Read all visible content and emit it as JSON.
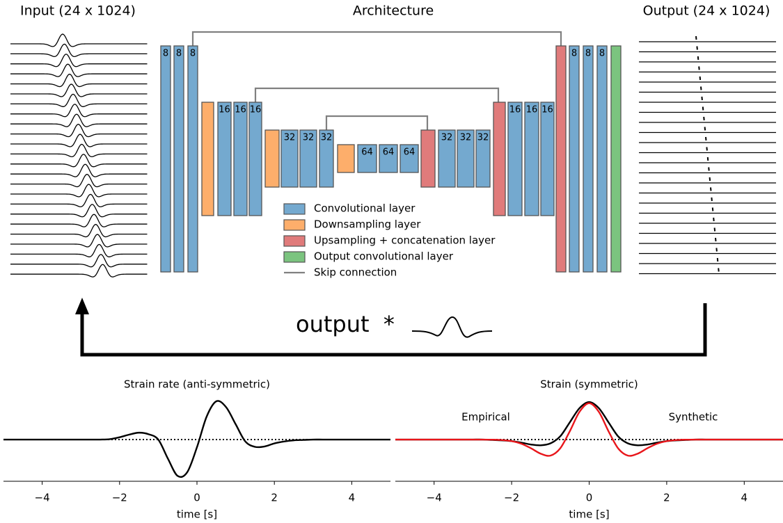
{
  "header": {
    "input": "Input (24 x 1024)",
    "architecture": "Architecture",
    "output": "Output (24 x 1024)"
  },
  "diagram": {
    "layer_labels": [
      "8",
      "8",
      "8",
      "16",
      "16",
      "16",
      "32",
      "32",
      "32",
      "64",
      "64",
      "64",
      "32",
      "32",
      "32",
      "16",
      "16",
      "16",
      "8",
      "8",
      "8"
    ],
    "legend": [
      {
        "label": "Convolutional layer",
        "color": "#74a9cf"
      },
      {
        "label": "Downsampling layer",
        "color": "#fdae6b"
      },
      {
        "label": "Upsampling + concatenation layer",
        "color": "#e07b7b"
      },
      {
        "label": "Output convolutional layer",
        "color": "#7bc47f"
      },
      {
        "label": "Skip connection",
        "color": "#808080"
      }
    ],
    "formula": "output  *"
  },
  "chart_data": [
    {
      "type": "line",
      "title": "Strain rate (anti-symmetric)",
      "x_label": "time [s]",
      "xlim": [
        -5,
        5
      ],
      "ylim": [
        -1.09,
        1.2
      ],
      "xticks": [
        {
          "value": -4,
          "label": "−4"
        },
        {
          "value": -2,
          "label": "−2"
        },
        0,
        2,
        4
      ],
      "hline": 0,
      "x": [
        -5,
        -4.75,
        -4.5,
        -4.25,
        -4,
        -3.75,
        -3.5,
        -3.25,
        -3,
        -2.75,
        -2.5,
        -2.25,
        -2,
        -1.75,
        -1.5,
        -1.25,
        -1,
        -0.75,
        -0.5,
        -0.25,
        0,
        0.25,
        0.5,
        0.75,
        1,
        1.25,
        1.5,
        1.75,
        2,
        2.25,
        2.5,
        2.75,
        3,
        3.25,
        3.5,
        3.75,
        4,
        4.25,
        4.5,
        4.75,
        5
      ],
      "series": [
        {
          "color": "#000000",
          "values": [
            0,
            0,
            0,
            0,
            0,
            0,
            0,
            0,
            0,
            0,
            0,
            0.01,
            0.06,
            0.13,
            0.18,
            0.14,
            0,
            -0.5,
            -0.95,
            -0.85,
            -0.2,
            0.6,
            1.0,
            0.85,
            0.4,
            -0.05,
            -0.19,
            -0.18,
            -0.1,
            -0.05,
            -0.02,
            -0.01,
            0,
            0,
            0,
            0,
            0,
            0,
            0,
            0,
            0
          ]
        }
      ]
    },
    {
      "type": "line",
      "title": "Strain (symmetric)",
      "x_label": "time [s]",
      "xlim": [
        -5,
        5
      ],
      "ylim": [
        -1.09,
        1.2
      ],
      "xticks": [
        {
          "value": -4,
          "label": "−4"
        },
        {
          "value": -2,
          "label": "−2"
        },
        0,
        2,
        4
      ],
      "hline": 0,
      "x": [
        -5,
        -4.75,
        -4.5,
        -4.25,
        -4,
        -3.75,
        -3.5,
        -3.25,
        -3,
        -2.75,
        -2.5,
        -2.25,
        -2,
        -1.75,
        -1.5,
        -1.25,
        -1,
        -0.75,
        -0.5,
        -0.25,
        0,
        0.25,
        0.5,
        0.75,
        1,
        1.25,
        1.5,
        1.75,
        2,
        2.25,
        2.5,
        2.75,
        3,
        3.25,
        3.5,
        3.75,
        4,
        4.25,
        4.5,
        4.75,
        5
      ],
      "series": [
        {
          "name": "Empirical",
          "color": "#000000",
          "values": [
            0,
            0,
            0,
            0,
            0,
            0,
            0,
            0,
            0,
            0,
            -0.01,
            -0.02,
            -0.04,
            -0.08,
            -0.13,
            -0.15,
            -0.1,
            0.08,
            0.45,
            0.82,
            0.98,
            0.82,
            0.45,
            0.08,
            -0.1,
            -0.15,
            -0.13,
            -0.08,
            -0.04,
            -0.02,
            -0.01,
            0,
            0,
            0,
            0,
            0,
            0,
            0,
            0,
            0,
            0
          ]
        },
        {
          "name": "Synthetic",
          "color": "#e8161b",
          "values": [
            0,
            0,
            0,
            0,
            0,
            0,
            0,
            0,
            0,
            0,
            -0.003,
            -0.012,
            -0.041,
            -0.108,
            -0.228,
            -0.369,
            -0.42,
            -0.234,
            0.216,
            0.724,
            0.95,
            0.724,
            0.216,
            -0.234,
            -0.42,
            -0.369,
            -0.228,
            -0.108,
            -0.041,
            -0.012,
            -0.003,
            0,
            0,
            0,
            0,
            0,
            0,
            0,
            0,
            0,
            0
          ]
        }
      ]
    }
  ]
}
